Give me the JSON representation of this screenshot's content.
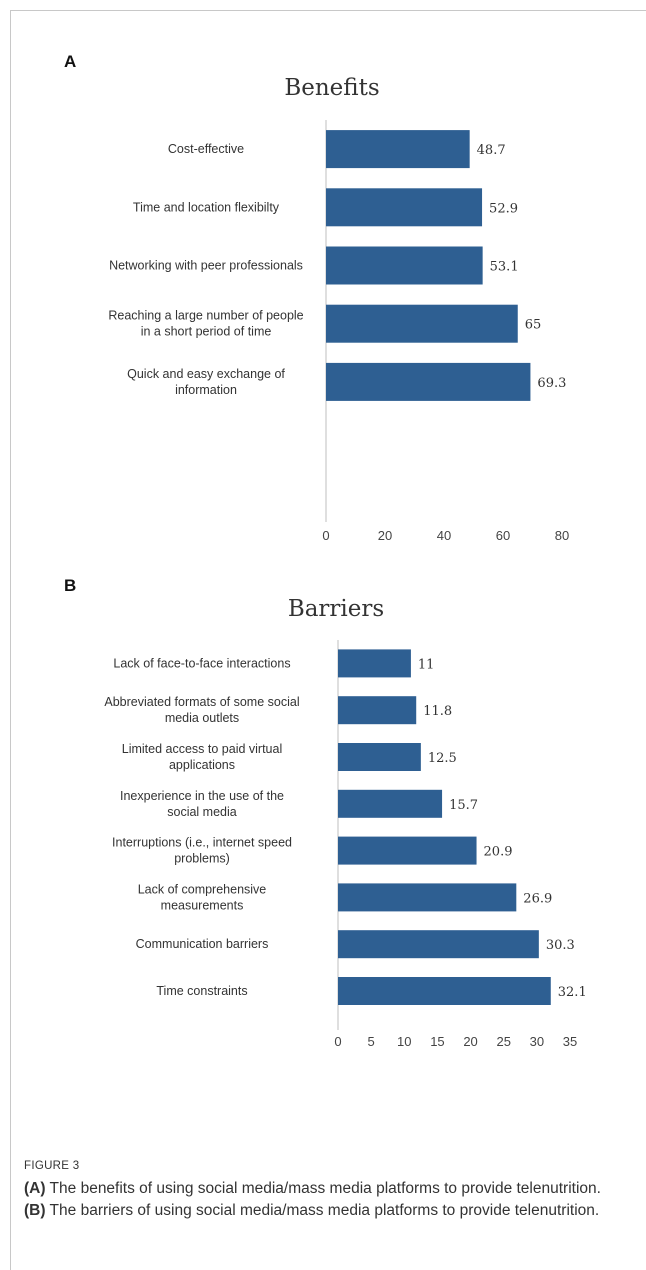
{
  "figure": {
    "label": "FIGURE 3",
    "caption_parts": [
      {
        "text": "(A)",
        "bold": true
      },
      {
        "text": " The benefits of using social media/mass media platforms to provide telenutrition. ",
        "bold": false
      },
      {
        "text": "(B)",
        "bold": true
      },
      {
        "text": " The barriers of using social media/mass media platforms to provide telenutrition.",
        "bold": false
      }
    ]
  },
  "chart_data": [
    {
      "panel": "A",
      "type": "bar",
      "orientation": "horizontal",
      "title": "Benefits",
      "categories": [
        [
          "Cost-effective"
        ],
        [
          "Time and location flexibilty"
        ],
        [
          "Networking with peer professionals"
        ],
        [
          "Reaching a large number of people",
          "in a short period of time"
        ],
        [
          "Quick and easy exchange of",
          "information"
        ]
      ],
      "values": [
        48.7,
        52.9,
        53.1,
        65,
        69.3
      ],
      "value_labels": [
        "48.7",
        "52.9",
        "53.1",
        "65",
        "69.3"
      ],
      "xlim": [
        0,
        80
      ],
      "xticks": [
        0,
        20,
        40,
        60,
        80
      ],
      "bar_color": "#2e5f92",
      "grid": false
    },
    {
      "panel": "B",
      "type": "bar",
      "orientation": "horizontal",
      "title": "Barriers",
      "categories": [
        [
          "Lack of face-to-face interactions"
        ],
        [
          "Abbreviated formats of some social",
          "media outlets"
        ],
        [
          "Limited access to paid virtual",
          "applications"
        ],
        [
          "Inexperience in the use of the",
          "social media"
        ],
        [
          "Interruptions (i.e., internet speed",
          "problems)"
        ],
        [
          "Lack of comprehensive",
          "measurements"
        ],
        [
          "Communication barriers"
        ],
        [
          "Time constraints"
        ]
      ],
      "values": [
        11,
        11.8,
        12.5,
        15.7,
        20.9,
        26.9,
        30.3,
        32.1
      ],
      "value_labels": [
        "11",
        "11.8",
        "12.5",
        "15.7",
        "20.9",
        "26.9",
        "30.3",
        "32.1"
      ],
      "xlim": [
        0,
        35
      ],
      "xticks": [
        0,
        5,
        10,
        15,
        20,
        25,
        30,
        35
      ],
      "bar_color": "#2e5f92",
      "grid": false
    }
  ]
}
